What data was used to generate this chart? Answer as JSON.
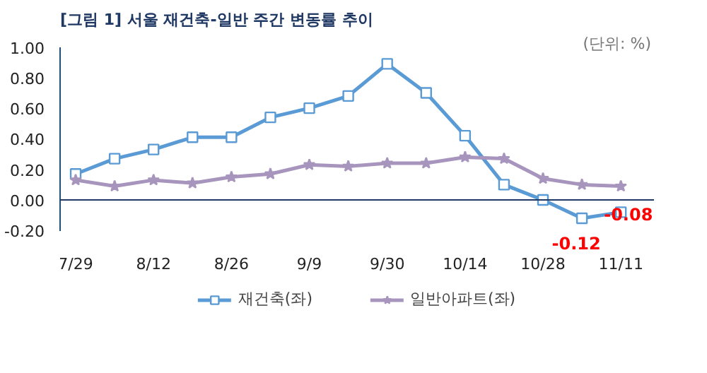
{
  "chart_data": {
    "type": "line",
    "title": "[그림 1] 서울 재건축-일반 주간 변동률 추이",
    "annotations": [
      "(단위: %)"
    ],
    "categories": [
      "7/29",
      null,
      "8/12",
      null,
      "8/26",
      null,
      "9/9",
      null,
      "9/30",
      null,
      "10/14",
      null,
      "10/28",
      null,
      "11/11"
    ],
    "series": [
      {
        "name": "재건축(좌)",
        "color": "#5b9bd5",
        "marker": "square",
        "values": [
          0.17,
          0.27,
          0.33,
          0.41,
          0.41,
          0.54,
          0.6,
          0.68,
          0.89,
          0.7,
          0.42,
          0.1,
          0.0,
          -0.12,
          -0.08
        ],
        "value_labels": [
          null,
          null,
          null,
          null,
          null,
          null,
          null,
          null,
          null,
          null,
          null,
          null,
          null,
          "-0.12",
          "-0.08"
        ]
      },
      {
        "name": "일반아파트(좌)",
        "color": "#a795bd",
        "marker": "star",
        "values": [
          0.13,
          0.09,
          0.13,
          0.11,
          0.15,
          0.17,
          0.23,
          0.22,
          0.24,
          0.24,
          0.28,
          0.27,
          0.14,
          0.1,
          0.09
        ]
      }
    ],
    "ylim": [
      -0.2,
      1.0
    ],
    "yticks": [
      {
        "value": -0.2,
        "label": "-0.20"
      },
      {
        "value": 0,
        "label": "0.00"
      },
      {
        "value": 0.2,
        "label": "0.20"
      },
      {
        "value": 0.4,
        "label": "0.40"
      },
      {
        "value": 0.6,
        "label": "0.60"
      },
      {
        "value": 0.8,
        "label": "0.80"
      },
      {
        "value": 1.0,
        "label": "1.00"
      }
    ],
    "ref_lines": [
      {
        "axis": "y",
        "value": 0,
        "color": "#1f3864"
      }
    ],
    "grid": false,
    "legend": "bottom",
    "line_style": "solid"
  }
}
